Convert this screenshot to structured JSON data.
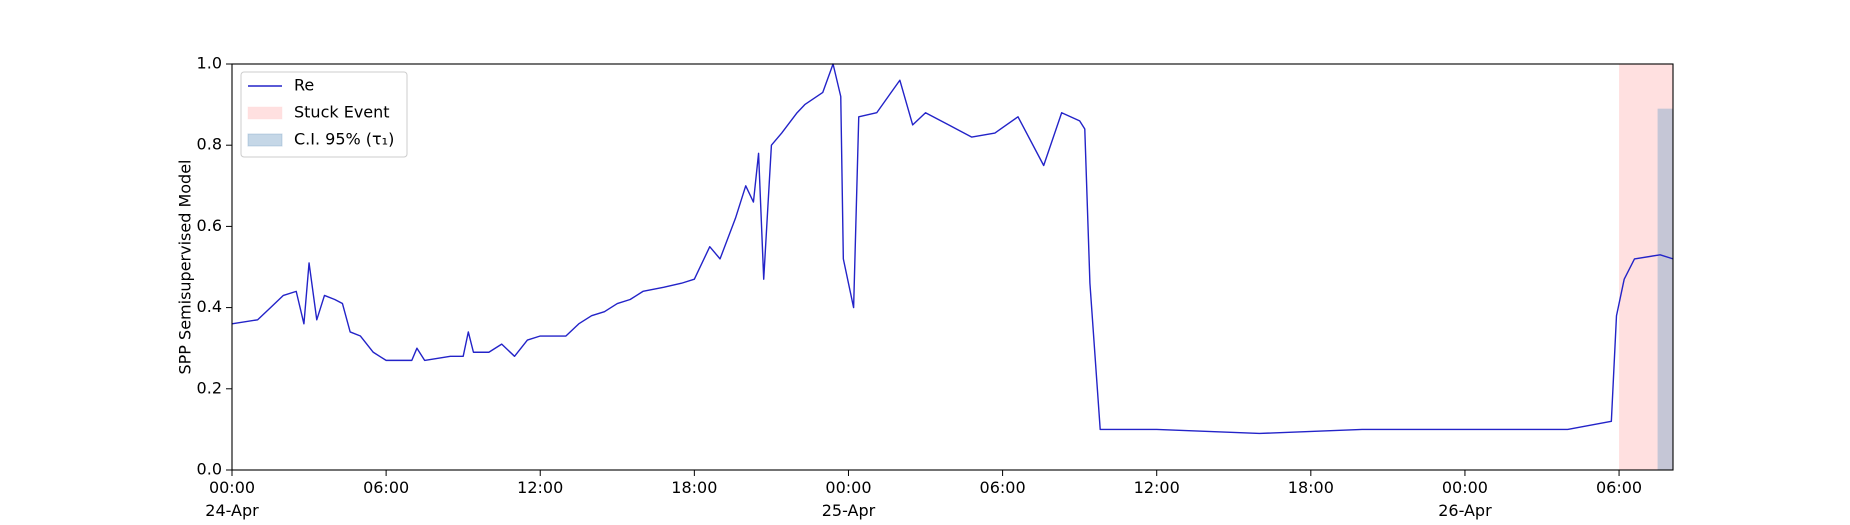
{
  "chart_data": {
    "type": "line",
    "ylabel": "SPP Semisupervised Model",
    "x": [
      "1900-04-24T00:00",
      "1900-04-24T01:00",
      "1900-04-24T01:30",
      "1900-04-24T02:00",
      "1900-04-24T02:30",
      "1900-04-24T02:48",
      "1900-04-24T03:00",
      "1900-04-24T03:18",
      "1900-04-24T03:36",
      "1900-04-24T04:00",
      "1900-04-24T04:18",
      "1900-04-24T04:36",
      "1900-04-24T05:00",
      "1900-04-24T05:30",
      "1900-04-24T06:00",
      "1900-04-24T07:00",
      "1900-04-24T07:12",
      "1900-04-24T07:30",
      "1900-04-24T08:30",
      "1900-04-24T09:00",
      "1900-04-24T09:12",
      "1900-04-24T09:24",
      "1900-04-24T10:00",
      "1900-04-24T10:30",
      "1900-04-24T11:00",
      "1900-04-24T11:30",
      "1900-04-24T12:00",
      "1900-04-24T13:00",
      "1900-04-24T13:30",
      "1900-04-24T14:00",
      "1900-04-24T14:30",
      "1900-04-24T15:00",
      "1900-04-24T15:30",
      "1900-04-24T16:00",
      "1900-04-24T16:48",
      "1900-04-24T17:30",
      "1900-04-24T18:00",
      "1900-04-24T18:36",
      "1900-04-24T19:00",
      "1900-04-24T19:36",
      "1900-04-24T20:00",
      "1900-04-24T20:18",
      "1900-04-24T20:30",
      "1900-04-24T20:42",
      "1900-04-24T21:00",
      "1900-04-24T21:24",
      "1900-04-24T22:00",
      "1900-04-24T22:18",
      "1900-04-24T23:00",
      "1900-04-24T23:24",
      "1900-04-24T23:42",
      "1900-04-24T23:48",
      "1900-04-25T00:12",
      "1900-04-25T00:24",
      "1900-04-25T01:06",
      "1900-04-25T02:00",
      "1900-04-25T02:30",
      "1900-04-25T03:00",
      "1900-04-25T03:54",
      "1900-04-25T04:48",
      "1900-04-25T05:42",
      "1900-04-25T06:36",
      "1900-04-25T07:36",
      "1900-04-25T08:18",
      "1900-04-25T09:00",
      "1900-04-25T09:12",
      "1900-04-25T09:24",
      "1900-04-25T09:48",
      "1900-04-25T12:00",
      "1900-04-25T16:00",
      "1900-04-25T20:00",
      "1900-04-26T00:00",
      "1900-04-26T04:00",
      "1900-04-26T05:42",
      "1900-04-26T05:54",
      "1900-04-26T06:12",
      "1900-04-26T06:36",
      "1900-04-26T07:36",
      "1900-04-26T08:06"
    ],
    "series": [
      {
        "name": "Re",
        "color": "#2323c8",
        "values": [
          0.36,
          0.37,
          0.4,
          0.43,
          0.44,
          0.36,
          0.51,
          0.37,
          0.43,
          0.42,
          0.41,
          0.34,
          0.33,
          0.29,
          0.27,
          0.27,
          0.3,
          0.27,
          0.28,
          0.28,
          0.34,
          0.29,
          0.29,
          0.31,
          0.28,
          0.32,
          0.33,
          0.33,
          0.36,
          0.38,
          0.39,
          0.41,
          0.42,
          0.44,
          0.45,
          0.46,
          0.47,
          0.55,
          0.52,
          0.62,
          0.7,
          0.66,
          0.78,
          0.47,
          0.8,
          0.83,
          0.88,
          0.9,
          0.93,
          1.0,
          0.92,
          0.52,
          0.4,
          0.87,
          0.88,
          0.96,
          0.85,
          0.88,
          0.85,
          0.82,
          0.83,
          0.87,
          0.75,
          0.88,
          0.86,
          0.84,
          0.46,
          0.1,
          0.1,
          0.09,
          0.1,
          0.1,
          0.1,
          0.12,
          0.38,
          0.47,
          0.52,
          0.53,
          0.52
        ]
      }
    ],
    "spans": [
      {
        "name": "Stuck Event",
        "color": "#ffdddd",
        "x": [
          "1900-04-26T06:00",
          "1900-04-26T08:06"
        ],
        "y": [
          0,
          1.0
        ]
      },
      {
        "name": "C.I. 95% (τ₁)",
        "color": "#7fa6c9",
        "x": [
          "1900-04-26T07:30",
          "1900-04-26T08:06"
        ],
        "y": [
          0,
          0.89
        ]
      }
    ],
    "xlim": [
      "1900-04-24T00:00",
      "1900-04-26T08:06"
    ],
    "xticks": [
      {
        "value": "1900-04-24T00:00",
        "label": "00:00\n24-Apr\n1900"
      },
      {
        "value": "1900-04-24T06:00",
        "label": "06:00"
      },
      {
        "value": "1900-04-24T12:00",
        "label": "12:00"
      },
      {
        "value": "1900-04-24T18:00",
        "label": "18:00"
      },
      {
        "value": "1900-04-25T00:00",
        "label": "00:00\n25-Apr"
      },
      {
        "value": "1900-04-25T06:00",
        "label": "06:00"
      },
      {
        "value": "1900-04-25T12:00",
        "label": "12:00"
      },
      {
        "value": "1900-04-25T18:00",
        "label": "18:00"
      },
      {
        "value": "1900-04-26T00:00",
        "label": "00:00\n26-Apr"
      },
      {
        "value": "1900-04-26T06:00",
        "label": "06:00"
      }
    ],
    "ylim": [
      0,
      1.0
    ],
    "yticks": [
      {
        "value": 0,
        "label": "0.0"
      },
      {
        "value": 0.2,
        "label": "0.2"
      },
      {
        "value": 0.4,
        "label": "0.4"
      },
      {
        "value": 0.6,
        "label": "0.6"
      },
      {
        "value": 0.8,
        "label": "0.8"
      },
      {
        "value": 1.0,
        "label": "1.0"
      }
    ],
    "legend": "upper left"
  }
}
